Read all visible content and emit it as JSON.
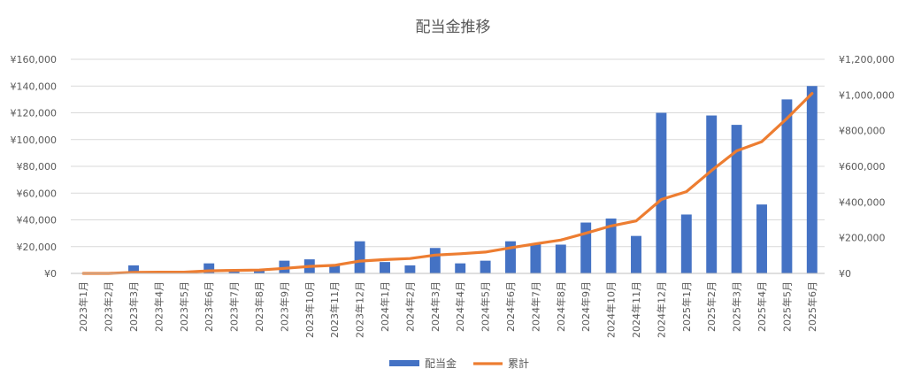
{
  "chart_data": {
    "type": "bar",
    "title": "配当金推移",
    "categories": [
      "2023年1月",
      "2023年2月",
      "2023年3月",
      "2023年4月",
      "2023年5月",
      "2023年6月",
      "2023年7月",
      "2023年8月",
      "2023年9月",
      "2023年10月",
      "2023年11月",
      "2023年12月",
      "2024年1月",
      "2024年2月",
      "2024年3月",
      "2024年4月",
      "2024年5月",
      "2024年6月",
      "2024年7月",
      "2024年8月",
      "2024年9月",
      "2024年10月",
      "2024年11月",
      "2024年12月",
      "2025年1月",
      "2025年2月",
      "2025年3月",
      "2025年4月",
      "2025年5月",
      "2025年6月"
    ],
    "series": [
      {
        "name": "配当金",
        "type": "bar",
        "axis": "left",
        "color": "#4472C4",
        "values": [
          0,
          0,
          6000,
          1000,
          0,
          7500,
          2500,
          2000,
          9500,
          10500,
          6000,
          24000,
          8500,
          6000,
          19000,
          7500,
          9500,
          24000,
          22000,
          21500,
          38000,
          41000,
          28000,
          120000,
          44000,
          118000,
          111000,
          51500,
          130000,
          140000
        ]
      },
      {
        "name": "累計",
        "type": "line",
        "axis": "right",
        "color": "#ED7D31",
        "values": [
          0,
          0,
          6000,
          7000,
          7000,
          14500,
          17000,
          19000,
          28500,
          39000,
          45000,
          69000,
          77500,
          83500,
          102500,
          110000,
          119500,
          143500,
          165500,
          187000,
          225000,
          266000,
          294000,
          414000,
          458000,
          576000,
          687000,
          738500,
          868500,
          1008500
        ]
      }
    ],
    "ylim_left": [
      0,
      160000
    ],
    "ylim_right": [
      0,
      1200000
    ],
    "yticks_left": [
      "¥0",
      "¥20,000",
      "¥40,000",
      "¥60,000",
      "¥80,000",
      "¥100,000",
      "¥120,000",
      "¥140,000",
      "¥160,000"
    ],
    "yticks_right": [
      "¥0",
      "¥200,000",
      "¥400,000",
      "¥600,000",
      "¥800,000",
      "¥1,000,000",
      "¥1,200,000"
    ],
    "grid": true,
    "legend_position": "bottom"
  }
}
